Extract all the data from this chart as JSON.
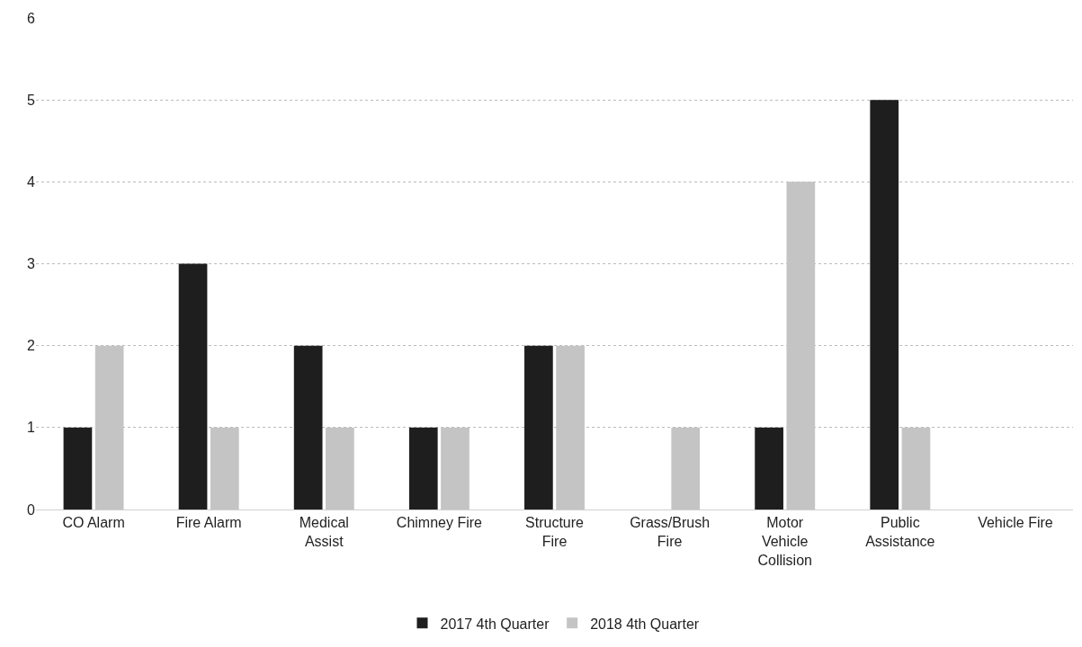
{
  "chart_data": {
    "type": "bar",
    "categories": [
      "CO Alarm",
      "Fire Alarm",
      "Medical Assist",
      "Chimney Fire",
      "Structure Fire",
      "Grass/Brush Fire",
      "Motor Vehicle Collision",
      "Public Assistance",
      "Vehicle Fire"
    ],
    "series": [
      {
        "name": "2017 4th Quarter",
        "color": "#1e1e1e",
        "values": [
          1,
          3,
          2,
          1,
          2,
          0,
          1,
          5,
          0
        ]
      },
      {
        "name": "2018 4th Quarter",
        "color": "#c4c4c4",
        "values": [
          2,
          1,
          1,
          1,
          2,
          1,
          4,
          1,
          0
        ]
      }
    ],
    "ylim": [
      0,
      6
    ],
    "yticks": [
      0,
      1,
      2,
      3,
      4,
      5,
      6
    ],
    "grid": "y",
    "legend": "bottom"
  }
}
